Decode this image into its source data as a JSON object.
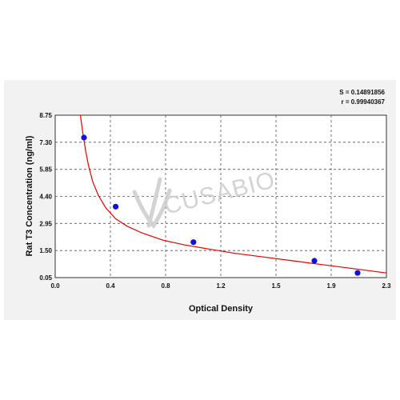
{
  "chart_data": {
    "type": "scatter",
    "title": "",
    "xlabel": "Optical Density",
    "ylabel": "Rat T3 Concentration (ng/ml)",
    "xlim": [
      0.0,
      2.3
    ],
    "ylim": [
      0.05,
      8.75
    ],
    "x_ticks": [
      "0.0",
      "0.4",
      "0.8",
      "1.2",
      "1.5",
      "1.9",
      "2.3"
    ],
    "y_ticks": [
      "0.05",
      "1.50",
      "2.95",
      "4.40",
      "5.85",
      "7.30",
      "8.75"
    ],
    "series": [
      {
        "marker": "circle",
        "color": "#1010e0",
        "x": [
          0.2,
          0.42,
          0.96,
          1.8,
          2.1
        ],
        "y": [
          7.55,
          3.85,
          1.95,
          0.95,
          0.3
        ]
      }
    ],
    "fit_curve": {
      "color": "#e00000",
      "x": [
        0.175,
        0.19,
        0.21,
        0.23,
        0.26,
        0.3,
        0.35,
        0.42,
        0.5,
        0.6,
        0.75,
        0.9,
        1.05,
        1.25,
        1.45,
        1.65,
        1.85,
        2.05,
        2.3
      ],
      "y": [
        8.75,
        7.9,
        6.9,
        6.1,
        5.2,
        4.45,
        3.8,
        3.2,
        2.8,
        2.45,
        2.05,
        1.8,
        1.6,
        1.35,
        1.15,
        0.95,
        0.75,
        0.55,
        0.3
      ]
    },
    "stats": {
      "s": "S = 0.14891856",
      "r": "r = 0.99940367"
    },
    "grid": true,
    "background": "#ffffff",
    "frame_background": "#f2f2f2",
    "watermark": "CUSABIO"
  }
}
